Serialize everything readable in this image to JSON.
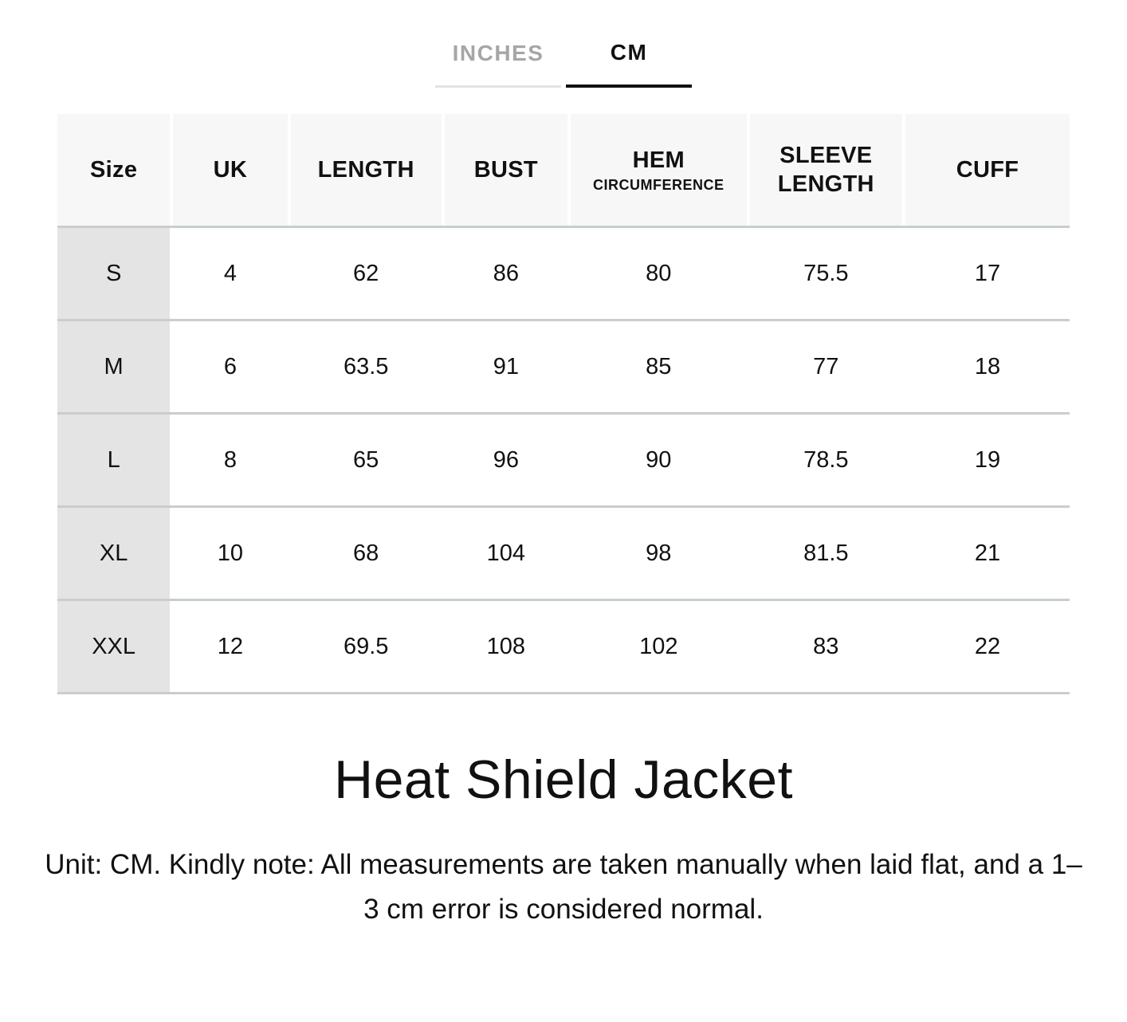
{
  "tabs": {
    "inches_label": "INCHES",
    "cm_label": "CM",
    "active": "CM"
  },
  "table": {
    "columns": [
      {
        "label": "Size"
      },
      {
        "label": "UK"
      },
      {
        "label": "LENGTH"
      },
      {
        "label": "BUST"
      },
      {
        "label": "HEM",
        "sublabel": "CIRCUMFERENCE"
      },
      {
        "label": "SLEEVE LENGTH"
      },
      {
        "label": "CUFF"
      }
    ],
    "rows": [
      {
        "size": "S",
        "values": [
          "4",
          "62",
          "86",
          "80",
          "75.5",
          "17"
        ]
      },
      {
        "size": "M",
        "values": [
          "6",
          "63.5",
          "91",
          "85",
          "77",
          "18"
        ]
      },
      {
        "size": "L",
        "values": [
          "8",
          "65",
          "96",
          "90",
          "78.5",
          "19"
        ]
      },
      {
        "size": "XL",
        "values": [
          "10",
          "68",
          "104",
          "98",
          "81.5",
          "21"
        ]
      },
      {
        "size": "XXL",
        "values": [
          "12",
          "69.5",
          "108",
          "102",
          "83",
          "22"
        ]
      }
    ]
  },
  "title": "Heat Shield Jacket",
  "note": "Unit: CM. Kindly note: All measurements are taken manually when laid flat, and a 1–3 cm error is considered normal.",
  "colors": {
    "active_tab": "#111111",
    "inactive_tab": "#a6a6a6",
    "inactive_tab_line": "#e3e3e3",
    "header_bg": "#f7f7f7",
    "size_column_bg": "#e4e4e4",
    "row_divider": "#c8cdd0"
  }
}
